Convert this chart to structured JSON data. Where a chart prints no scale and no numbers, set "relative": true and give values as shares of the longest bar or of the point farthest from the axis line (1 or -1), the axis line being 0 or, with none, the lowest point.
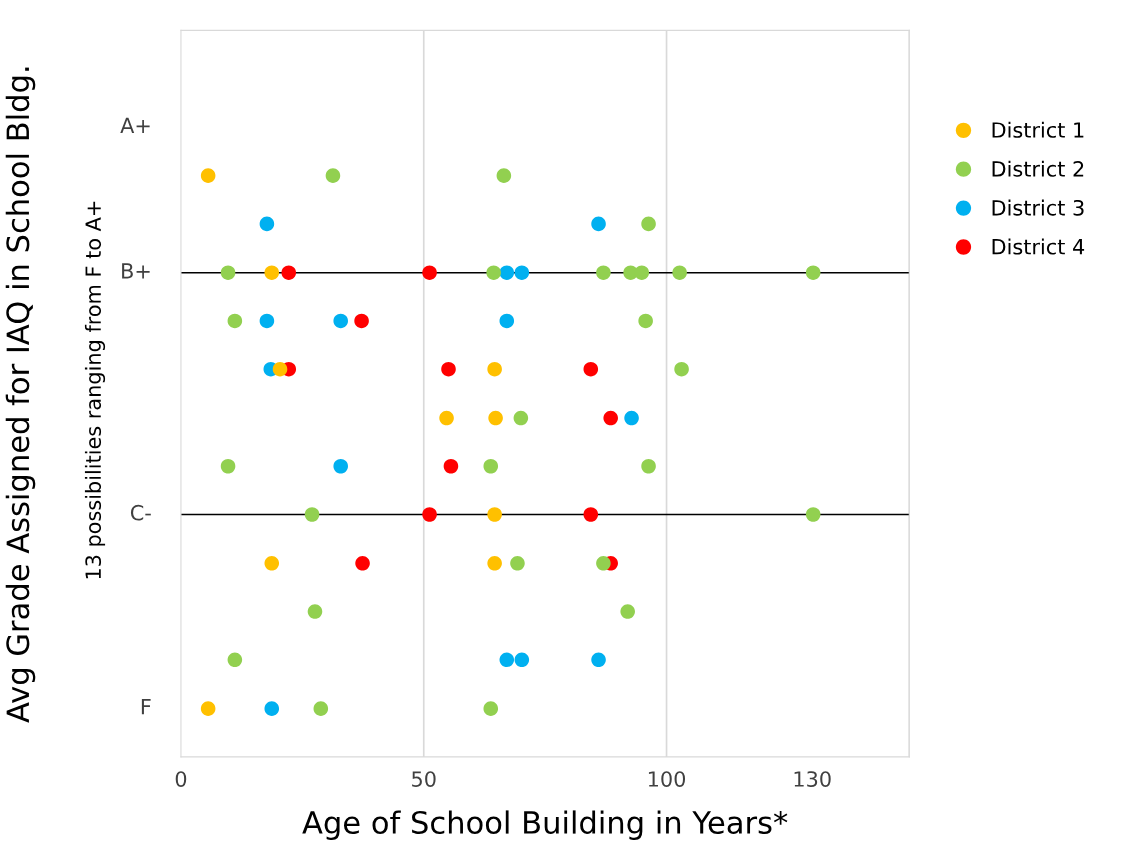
{
  "chart_data": {
    "type": "scatter",
    "xlabel": "Age of School Building in Years*",
    "ylabel": "Avg Grade Assigned for IAQ in School Bldg.",
    "relative": true,
    "annotations": [
      "13 possibilities ranging from F to A+",
      "F",
      "A+"
    ],
    "xlim": [
      0,
      150
    ],
    "xticks": [
      0,
      50,
      100,
      130
    ],
    "ref_lines": [
      {
        "axis": "x",
        "value": 50,
        "color": "#d9d9d9"
      },
      {
        "axis": "x",
        "value": 100,
        "color": "#d9d9d9"
      },
      {
        "axis": "x",
        "value": 150,
        "color": "#d9d9d9"
      },
      {
        "axis": "y",
        "value": 0.417,
        "color": "#000000",
        "label": "C-"
      },
      {
        "axis": "y",
        "value": 0.833,
        "color": "#000000",
        "label": "B+"
      }
    ],
    "marker": "circle",
    "legend": "right",
    "grid": false,
    "series": [
      {
        "name": "District 1",
        "color": "#ffc000",
        "x": [
          5.6,
          18.7,
          20.4,
          64.6,
          54.7,
          64.8,
          64.6,
          18.7,
          64.6,
          5.6
        ],
        "values": [
          1,
          0.833,
          0.667,
          0.667,
          0.583,
          0.583,
          0.417,
          0.333,
          0.333,
          0.083
        ]
      },
      {
        "name": "District 2",
        "color": "#92d050",
        "x": [
          31.3,
          66.5,
          96.3,
          9.7,
          64.4,
          87,
          92.6,
          94.9,
          102.7,
          130.2,
          11.1,
          95.7,
          103.1,
          70,
          9.7,
          63.8,
          96.3,
          27,
          130.2,
          69.3,
          87,
          27.6,
          92,
          11.1,
          28.8,
          63.8
        ],
        "values": [
          1,
          1,
          0.917,
          0.833,
          0.833,
          0.833,
          0.833,
          0.833,
          0.833,
          0.833,
          0.75,
          0.75,
          0.667,
          0.583,
          0.5,
          0.5,
          0.5,
          0.417,
          0.417,
          0.333,
          0.333,
          0.25,
          0.25,
          0.167,
          0.083,
          0.083
        ]
      },
      {
        "name": "District 3",
        "color": "#00b0f0",
        "x": [
          17.7,
          86,
          67.1,
          70.2,
          17.7,
          32.9,
          67.1,
          18.5,
          92.8,
          32.9,
          67.1,
          70.2,
          86,
          18.7
        ],
        "values": [
          0.917,
          0.917,
          0.833,
          0.833,
          0.75,
          0.75,
          0.75,
          0.667,
          0.583,
          0.5,
          0.167,
          0.167,
          0.167,
          0.083
        ]
      },
      {
        "name": "District 4",
        "color": "#ff0000",
        "x": [
          22.2,
          51.2,
          37.2,
          22.2,
          55.1,
          84.4,
          88.5,
          55.6,
          51.2,
          84.4,
          37.4,
          88.5
        ],
        "values": [
          0.833,
          0.833,
          0.75,
          0.667,
          0.667,
          0.667,
          0.583,
          0.5,
          0.417,
          0.417,
          0.333,
          0.333
        ]
      }
    ]
  }
}
